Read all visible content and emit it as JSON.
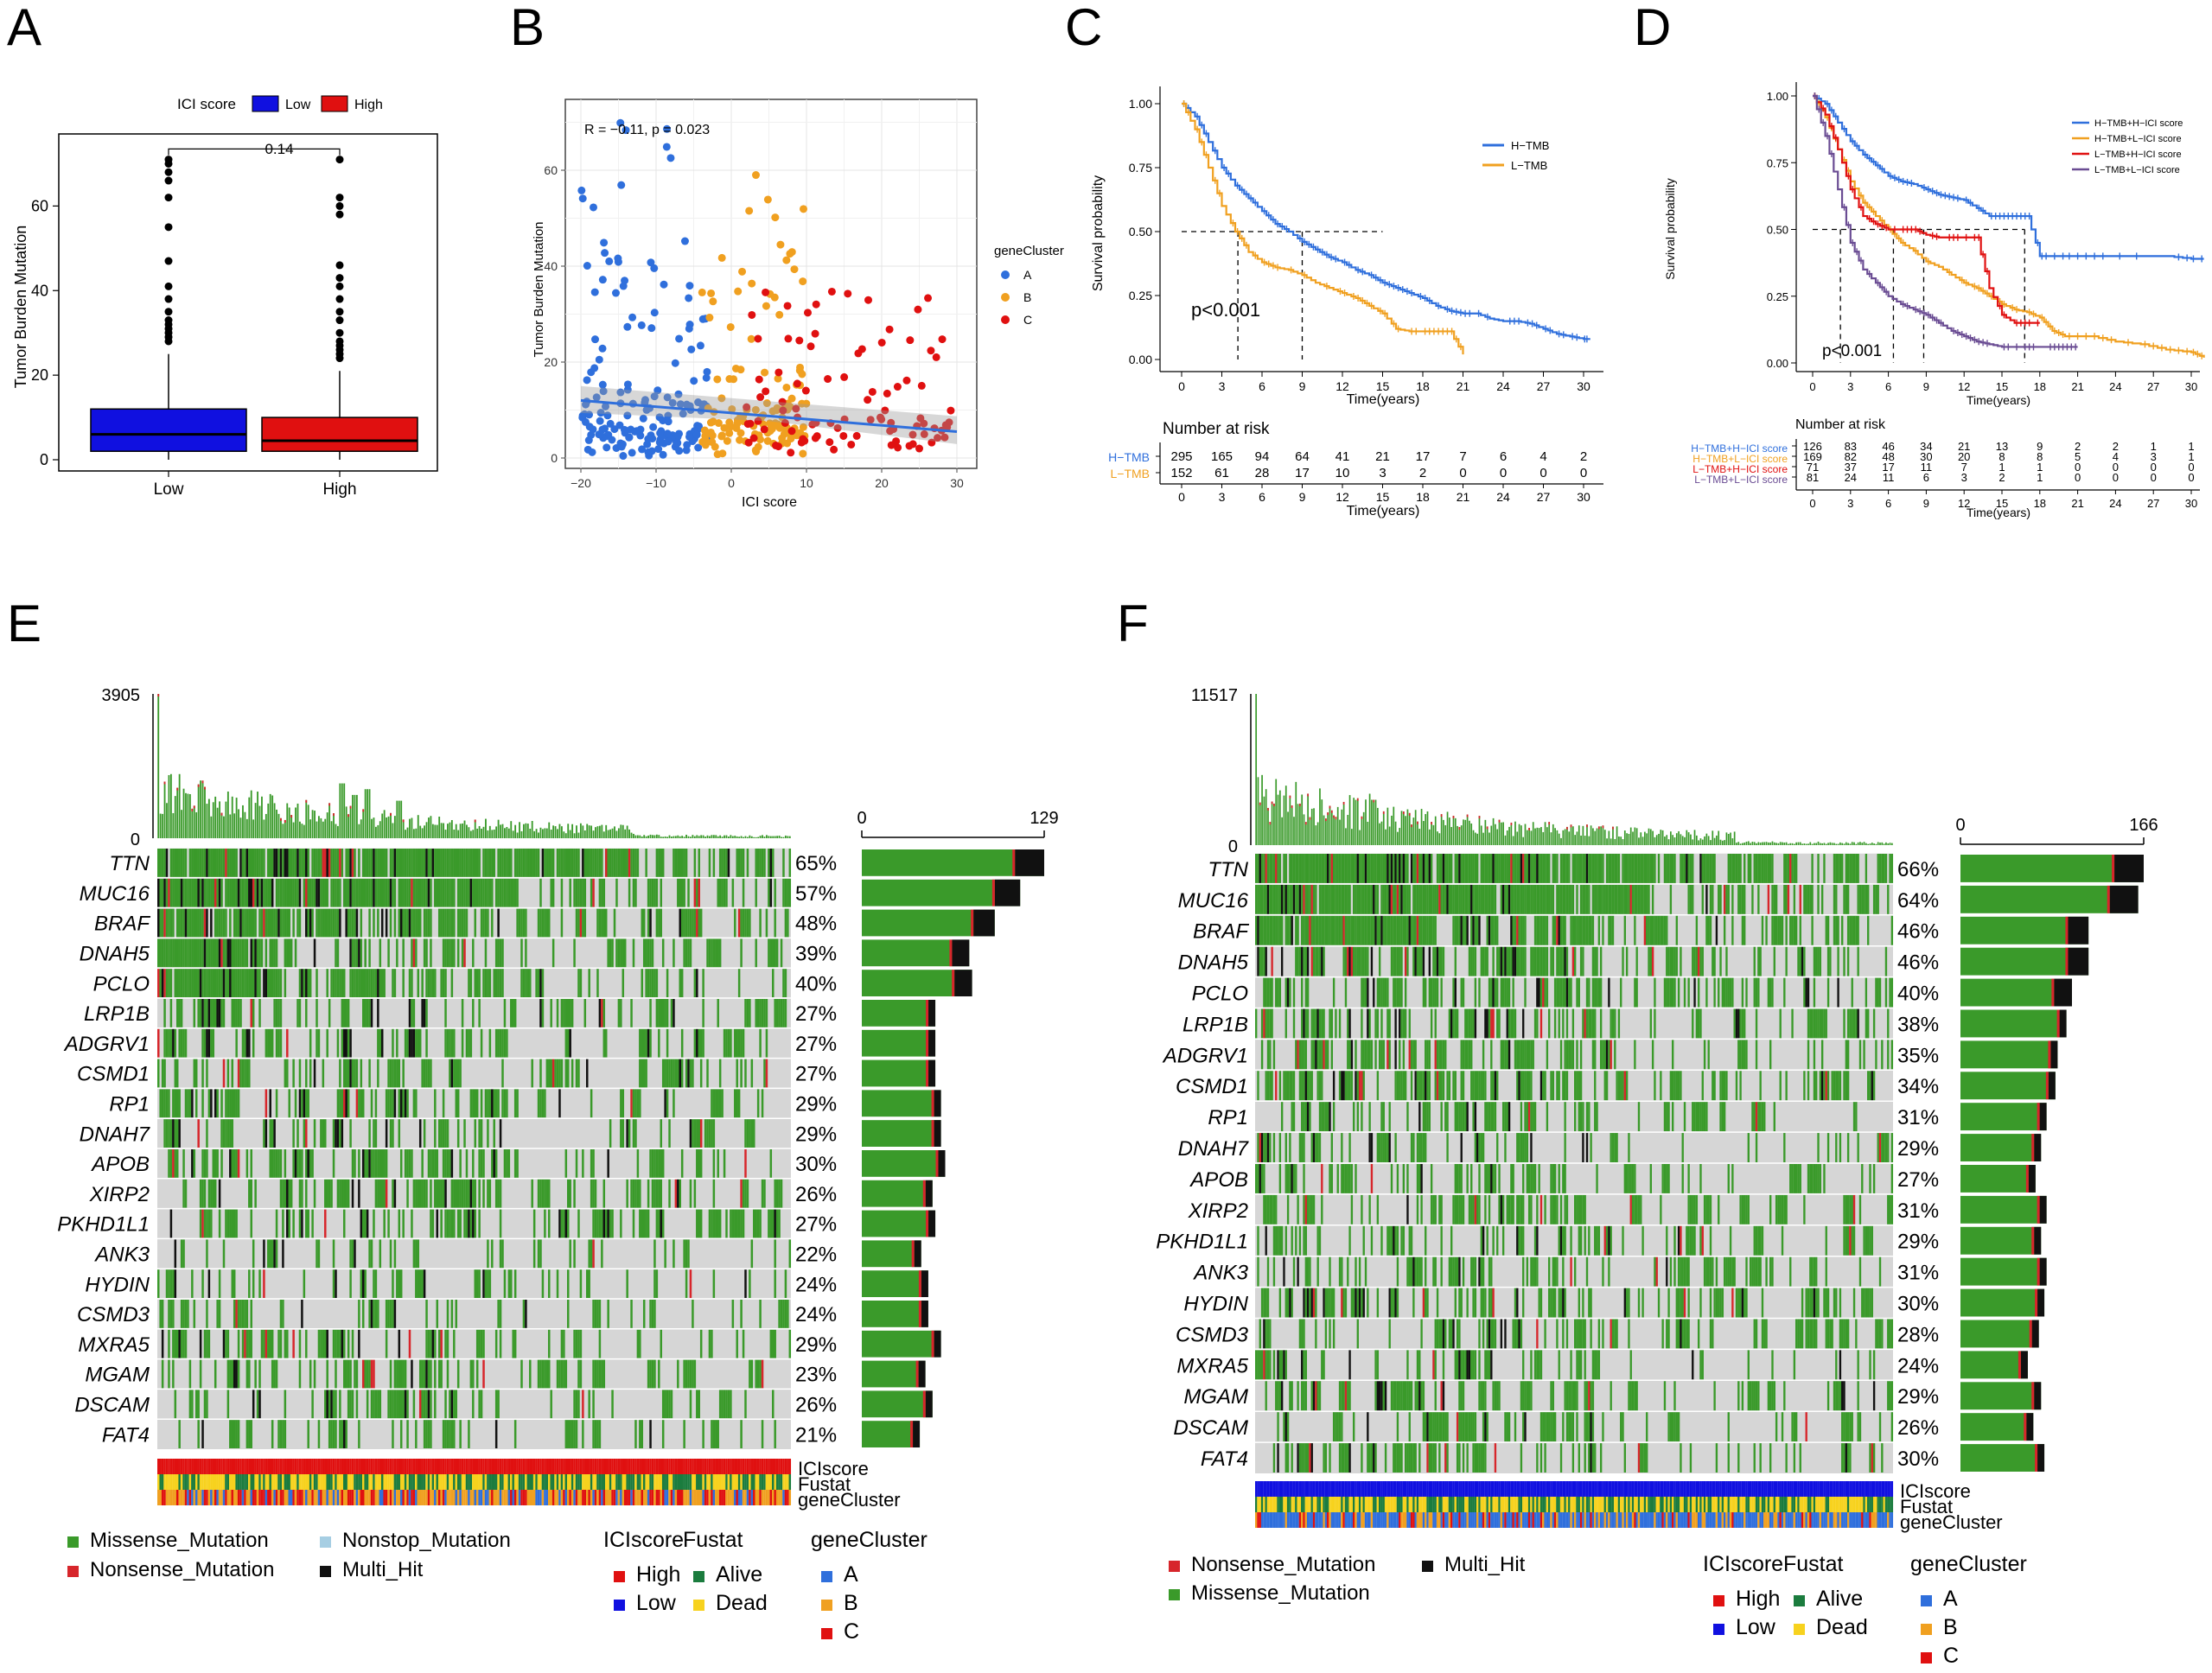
{
  "panels": {
    "A": {
      "letter": "A",
      "legend_title": "ICI score",
      "groups": [
        "Low",
        "High"
      ],
      "colors": [
        "#1010e0",
        "#e01010"
      ],
      "ylabel": "Tumor Burden Mutation",
      "yticks": [
        0,
        20,
        40,
        60
      ],
      "pvalue": "0.14",
      "box": [
        {
          "q1": 2,
          "median": 6,
          "q3": 12,
          "whisker_hi": 25,
          "outliers": [
            28,
            29,
            30,
            31,
            32,
            33,
            35,
            38,
            41,
            47,
            55,
            62,
            66,
            68,
            70,
            71
          ]
        },
        {
          "q1": 2,
          "median": 4.5,
          "q3": 10,
          "whisker_hi": 21,
          "outliers": [
            24,
            25,
            26,
            27,
            28,
            30,
            33,
            35,
            38,
            41,
            43,
            46,
            58,
            60,
            62,
            71
          ]
        }
      ]
    },
    "B": {
      "letter": "B",
      "stat": "R = −0.11, p = 0.023",
      "xlabel": "ICI score",
      "ylabel": "Tumor Burden Mutation",
      "xticks": [
        -20,
        -10,
        0,
        10,
        20,
        30
      ],
      "yticks": [
        0,
        20,
        40,
        60
      ],
      "legend_title": "geneCluster",
      "clusters": [
        "A",
        "B",
        "C"
      ],
      "colors": [
        "#2f6fdc",
        "#f0a020",
        "#e01010"
      ],
      "fit": {
        "x0": -20,
        "y0": 12,
        "x1": 30,
        "y1": 5.5
      }
    },
    "C": {
      "letter": "C",
      "ylabel": "Survival probability",
      "xlabel": "Time(years)",
      "pvalue": "p<0.001",
      "legend": [
        "H−TMB",
        "L−TMB"
      ],
      "colors": [
        "#2f6fdc",
        "#f0a020"
      ],
      "xticks": [
        0,
        3,
        6,
        9,
        12,
        15,
        18,
        21,
        24,
        27,
        30
      ],
      "yticks": [
        "0.00",
        "0.25",
        "0.50",
        "0.75",
        "1.00"
      ],
      "risk_title": "Number at risk",
      "risk_labels": [
        "H−TMB",
        "L−TMB"
      ],
      "risk": [
        [
          "295",
          "165",
          "94",
          "64",
          "41",
          "21",
          "17",
          "7",
          "6",
          "4",
          "2"
        ],
        [
          "152",
          "61",
          "28",
          "17",
          "10",
          "3",
          "2",
          "0",
          "0",
          "0",
          "0"
        ]
      ],
      "curves": [
        {
          "t": [
            0,
            1,
            2,
            3,
            4,
            5,
            6,
            7,
            8,
            9,
            10,
            11,
            12,
            13,
            14,
            15,
            16,
            17,
            18,
            19,
            20,
            21,
            22,
            23,
            24,
            25,
            26,
            27,
            28,
            29,
            30,
            30.5
          ],
          "s": [
            1.0,
            0.95,
            0.85,
            0.75,
            0.68,
            0.63,
            0.58,
            0.53,
            0.5,
            0.46,
            0.43,
            0.4,
            0.38,
            0.35,
            0.33,
            0.3,
            0.28,
            0.26,
            0.24,
            0.21,
            0.19,
            0.18,
            0.18,
            0.16,
            0.15,
            0.15,
            0.14,
            0.12,
            0.1,
            0.09,
            0.08,
            0.08
          ]
        },
        {
          "t": [
            0,
            1,
            2,
            3,
            4,
            5,
            6,
            7,
            8,
            9,
            10,
            11,
            12,
            13,
            14,
            15,
            16,
            17,
            18,
            19,
            20,
            21
          ],
          "s": [
            1.0,
            0.9,
            0.75,
            0.6,
            0.5,
            0.42,
            0.38,
            0.36,
            0.35,
            0.33,
            0.3,
            0.28,
            0.26,
            0.24,
            0.21,
            0.18,
            0.12,
            0.11,
            0.11,
            0.11,
            0.11,
            0.02
          ]
        }
      ]
    },
    "D": {
      "letter": "D",
      "ylabel": "Survival probability",
      "xlabel": "Time(years)",
      "pvalue": "p<0.001",
      "legend": [
        "H−TMB+H−ICI score",
        "H−TMB+L−ICI score",
        "L−TMB+H−ICI score",
        "L−TMB+L−ICI score"
      ],
      "colors": [
        "#2f6fdc",
        "#f0a020",
        "#e01010",
        "#6a4c93"
      ],
      "xticks": [
        0,
        3,
        6,
        9,
        12,
        15,
        18,
        21,
        24,
        27,
        30
      ],
      "yticks": [
        "0.00",
        "0.25",
        "0.50",
        "0.75",
        "1.00"
      ],
      "risk_title": "Number at risk",
      "risk_labels": [
        "H−TMB+H−ICI score",
        "H−TMB+L−ICI score",
        "L−TMB+H−ICI score",
        "L−TMB+L−ICI score"
      ],
      "risk": [
        [
          "126",
          "83",
          "46",
          "34",
          "21",
          "13",
          "9",
          "2",
          "2",
          "1",
          "1"
        ],
        [
          "169",
          "82",
          "48",
          "30",
          "20",
          "8",
          "8",
          "5",
          "4",
          "3",
          "1"
        ],
        [
          "71",
          "37",
          "17",
          "11",
          "7",
          "1",
          "1",
          "0",
          "0",
          "0",
          "0"
        ],
        [
          "81",
          "24",
          "11",
          "6",
          "3",
          "2",
          "1",
          "0",
          "0",
          "0",
          "0"
        ]
      ],
      "curves": [
        {
          "t": [
            0,
            1,
            2,
            3,
            4,
            5,
            6,
            7,
            8,
            9,
            10,
            11,
            12,
            13,
            14,
            15,
            16,
            17,
            18,
            19,
            20,
            22,
            24,
            26,
            28,
            30,
            31
          ],
          "s": [
            1.0,
            0.97,
            0.9,
            0.83,
            0.78,
            0.74,
            0.7,
            0.68,
            0.67,
            0.65,
            0.63,
            0.62,
            0.61,
            0.58,
            0.55,
            0.55,
            0.55,
            0.55,
            0.4,
            0.4,
            0.4,
            0.4,
            0.4,
            0.4,
            0.4,
            0.39,
            0.39
          ]
        },
        {
          "t": [
            0,
            1,
            2,
            3,
            4,
            5,
            6,
            7,
            8,
            9,
            10,
            11,
            12,
            13,
            14,
            15,
            16,
            17,
            18,
            19,
            20,
            22,
            24,
            26,
            28,
            30,
            31
          ],
          "s": [
            1.0,
            0.92,
            0.8,
            0.68,
            0.6,
            0.55,
            0.5,
            0.45,
            0.42,
            0.38,
            0.36,
            0.33,
            0.3,
            0.28,
            0.25,
            0.22,
            0.2,
            0.19,
            0.17,
            0.12,
            0.1,
            0.1,
            0.08,
            0.07,
            0.05,
            0.04,
            0.02
          ]
        },
        {
          "t": [
            0,
            1,
            2,
            3,
            4,
            5,
            6,
            7,
            8,
            9,
            10,
            11,
            12,
            13,
            14,
            15,
            16,
            17,
            18
          ],
          "s": [
            1.0,
            0.93,
            0.8,
            0.65,
            0.55,
            0.52,
            0.5,
            0.5,
            0.5,
            0.48,
            0.47,
            0.47,
            0.47,
            0.47,
            0.28,
            0.18,
            0.15,
            0.15,
            0.15
          ]
        },
        {
          "t": [
            0,
            1,
            2,
            3,
            4,
            5,
            6,
            7,
            8,
            9,
            10,
            11,
            12,
            13,
            14,
            15,
            16,
            17,
            18,
            19,
            20,
            21
          ],
          "s": [
            1.0,
            0.85,
            0.65,
            0.45,
            0.35,
            0.3,
            0.25,
            0.22,
            0.2,
            0.18,
            0.15,
            0.12,
            0.1,
            0.08,
            0.07,
            0.06,
            0.06,
            0.06,
            0.06,
            0.06,
            0.06,
            0.06
          ]
        }
      ]
    },
    "E": {
      "letter": "E",
      "top_max": "3905",
      "top_zero": "0",
      "bar_zero": "0",
      "bar_max": "129",
      "genes": [
        "TTN",
        "MUC16",
        "BRAF",
        "DNAH5",
        "PCLO",
        "LRP1B",
        "ADGRV1",
        "CSMD1",
        "RP1",
        "DNAH7",
        "APOB",
        "XIRP2",
        "PKHD1L1",
        "ANK3",
        "HYDIN",
        "CSMD3",
        "MXRA5",
        "MGAM",
        "DSCAM",
        "FAT4"
      ],
      "pcts": [
        "65%",
        "57%",
        "48%",
        "39%",
        "40%",
        "27%",
        "27%",
        "27%",
        "29%",
        "29%",
        "30%",
        "26%",
        "27%",
        "22%",
        "24%",
        "24%",
        "29%",
        "23%",
        "26%",
        "21%"
      ],
      "bar_counts": [
        129,
        112,
        94,
        76,
        78,
        52,
        52,
        52,
        56,
        56,
        59,
        50,
        52,
        42,
        47,
        47,
        56,
        45,
        50,
        41
      ],
      "anno_rows": [
        "ICIscore",
        "Fustat",
        "geneCluster"
      ],
      "legend_mutations": [
        "Missense_Mutation",
        "Nonstop_Mutation",
        "Nonsense_Mutation",
        "Multi_Hit"
      ],
      "legend_groups": {
        "ICIscore": {
          "title": "ICIscore",
          "items": [
            "High",
            "Low"
          ]
        },
        "Fustat": {
          "title": "Fustat",
          "items": [
            "Alive",
            "Dead"
          ]
        },
        "geneCluster": {
          "title": "geneCluster",
          "items": [
            "A",
            "B",
            "C"
          ]
        }
      }
    },
    "F": {
      "letter": "F",
      "top_max": "11517",
      "top_zero": "0",
      "bar_zero": "0",
      "bar_max": "166",
      "genes": [
        "TTN",
        "MUC16",
        "BRAF",
        "DNAH5",
        "PCLO",
        "LRP1B",
        "ADGRV1",
        "CSMD1",
        "RP1",
        "DNAH7",
        "APOB",
        "XIRP2",
        "PKHD1L1",
        "ANK3",
        "HYDIN",
        "CSMD3",
        "MXRA5",
        "MGAM",
        "DSCAM",
        "FAT4"
      ],
      "pcts": [
        "66%",
        "64%",
        "46%",
        "46%",
        "40%",
        "38%",
        "35%",
        "34%",
        "31%",
        "29%",
        "27%",
        "31%",
        "29%",
        "31%",
        "30%",
        "28%",
        "24%",
        "29%",
        "26%",
        "30%"
      ],
      "bar_counts": [
        166,
        161,
        116,
        116,
        101,
        96,
        88,
        86,
        78,
        73,
        68,
        78,
        73,
        78,
        76,
        71,
        61,
        73,
        66,
        76
      ],
      "anno_rows": [
        "ICIscore",
        "Fustat",
        "geneCluster"
      ],
      "legend_mutations": [
        "Nonsense_Mutation",
        "Multi_Hit",
        "Missense_Mutation"
      ],
      "legend_groups": {
        "ICIscore": {
          "title": "ICIscore",
          "items": [
            "High",
            "Low"
          ]
        },
        "Fustat": {
          "title": "Fustat",
          "items": [
            "Alive",
            "Dead"
          ]
        },
        "geneCluster": {
          "title": "geneCluster",
          "items": [
            "A",
            "B",
            "C"
          ]
        }
      }
    }
  },
  "colors": {
    "missense": "#3a9a2a",
    "nonsense": "#d7262b",
    "multi_hit": "#111111",
    "nonstop": "#a6cee3",
    "empty": "#d6d6d6",
    "high": "#e01010",
    "low": "#1010e0",
    "alive": "#1b7c3e",
    "dead": "#f7d21e",
    "cluster_a": "#2f6fdc",
    "cluster_b": "#f0a020",
    "cluster_c": "#e01010"
  },
  "chart_data": [
    {
      "type": "box",
      "title": "A",
      "categories": [
        "Low",
        "High"
      ],
      "ylabel": "Tumor Burden Mutation",
      "ylim": [
        0,
        75
      ],
      "medians": [
        6,
        4.5
      ],
      "pvalue": "0.14"
    },
    {
      "type": "scatter",
      "title": "B",
      "xlabel": "ICI score",
      "ylabel": "Tumor Burden Mutation",
      "xlim": [
        -22,
        32
      ],
      "ylim": [
        0,
        72
      ],
      "series": [
        "A",
        "B",
        "C"
      ],
      "annotation": "R = −0.11, p = 0.023"
    },
    {
      "type": "line",
      "title": "C",
      "xlabel": "Time(years)",
      "ylabel": "Survival probability",
      "series": [
        {
          "name": "H−TMB"
        },
        {
          "name": "L−TMB"
        }
      ],
      "pvalue": "p<0.001"
    },
    {
      "type": "line",
      "title": "D",
      "xlabel": "Time(years)",
      "ylabel": "Survival probability",
      "series": [
        {
          "name": "H−TMB+H−ICI score"
        },
        {
          "name": "H−TMB+L−ICI score"
        },
        {
          "name": "L−TMB+H−ICI score"
        },
        {
          "name": "L−TMB+L−ICI score"
        }
      ],
      "pvalue": "p<0.001"
    },
    {
      "type": "heatmap",
      "title": "E",
      "rows": [
        "TTN",
        "MUC16",
        "BRAF",
        "DNAH5",
        "PCLO",
        "LRP1B",
        "ADGRV1",
        "CSMD1",
        "RP1",
        "DNAH7",
        "APOB",
        "XIRP2",
        "PKHD1L1",
        "ANK3",
        "HYDIN",
        "CSMD3",
        "MXRA5",
        "MGAM",
        "DSCAM",
        "FAT4"
      ],
      "values": [
        65,
        57,
        48,
        39,
        40,
        27,
        27,
        27,
        29,
        29,
        30,
        26,
        27,
        22,
        24,
        24,
        29,
        23,
        26,
        21
      ],
      "max_count": 129,
      "tmb_max": 3905
    },
    {
      "type": "heatmap",
      "title": "F",
      "rows": [
        "TTN",
        "MUC16",
        "BRAF",
        "DNAH5",
        "PCLO",
        "LRP1B",
        "ADGRV1",
        "CSMD1",
        "RP1",
        "DNAH7",
        "APOB",
        "XIRP2",
        "PKHD1L1",
        "ANK3",
        "HYDIN",
        "CSMD3",
        "MXRA5",
        "MGAM",
        "DSCAM",
        "FAT4"
      ],
      "values": [
        66,
        64,
        46,
        46,
        40,
        38,
        35,
        34,
        31,
        29,
        27,
        31,
        29,
        31,
        30,
        28,
        24,
        29,
        26,
        30
      ],
      "max_count": 166,
      "tmb_max": 11517
    }
  ]
}
